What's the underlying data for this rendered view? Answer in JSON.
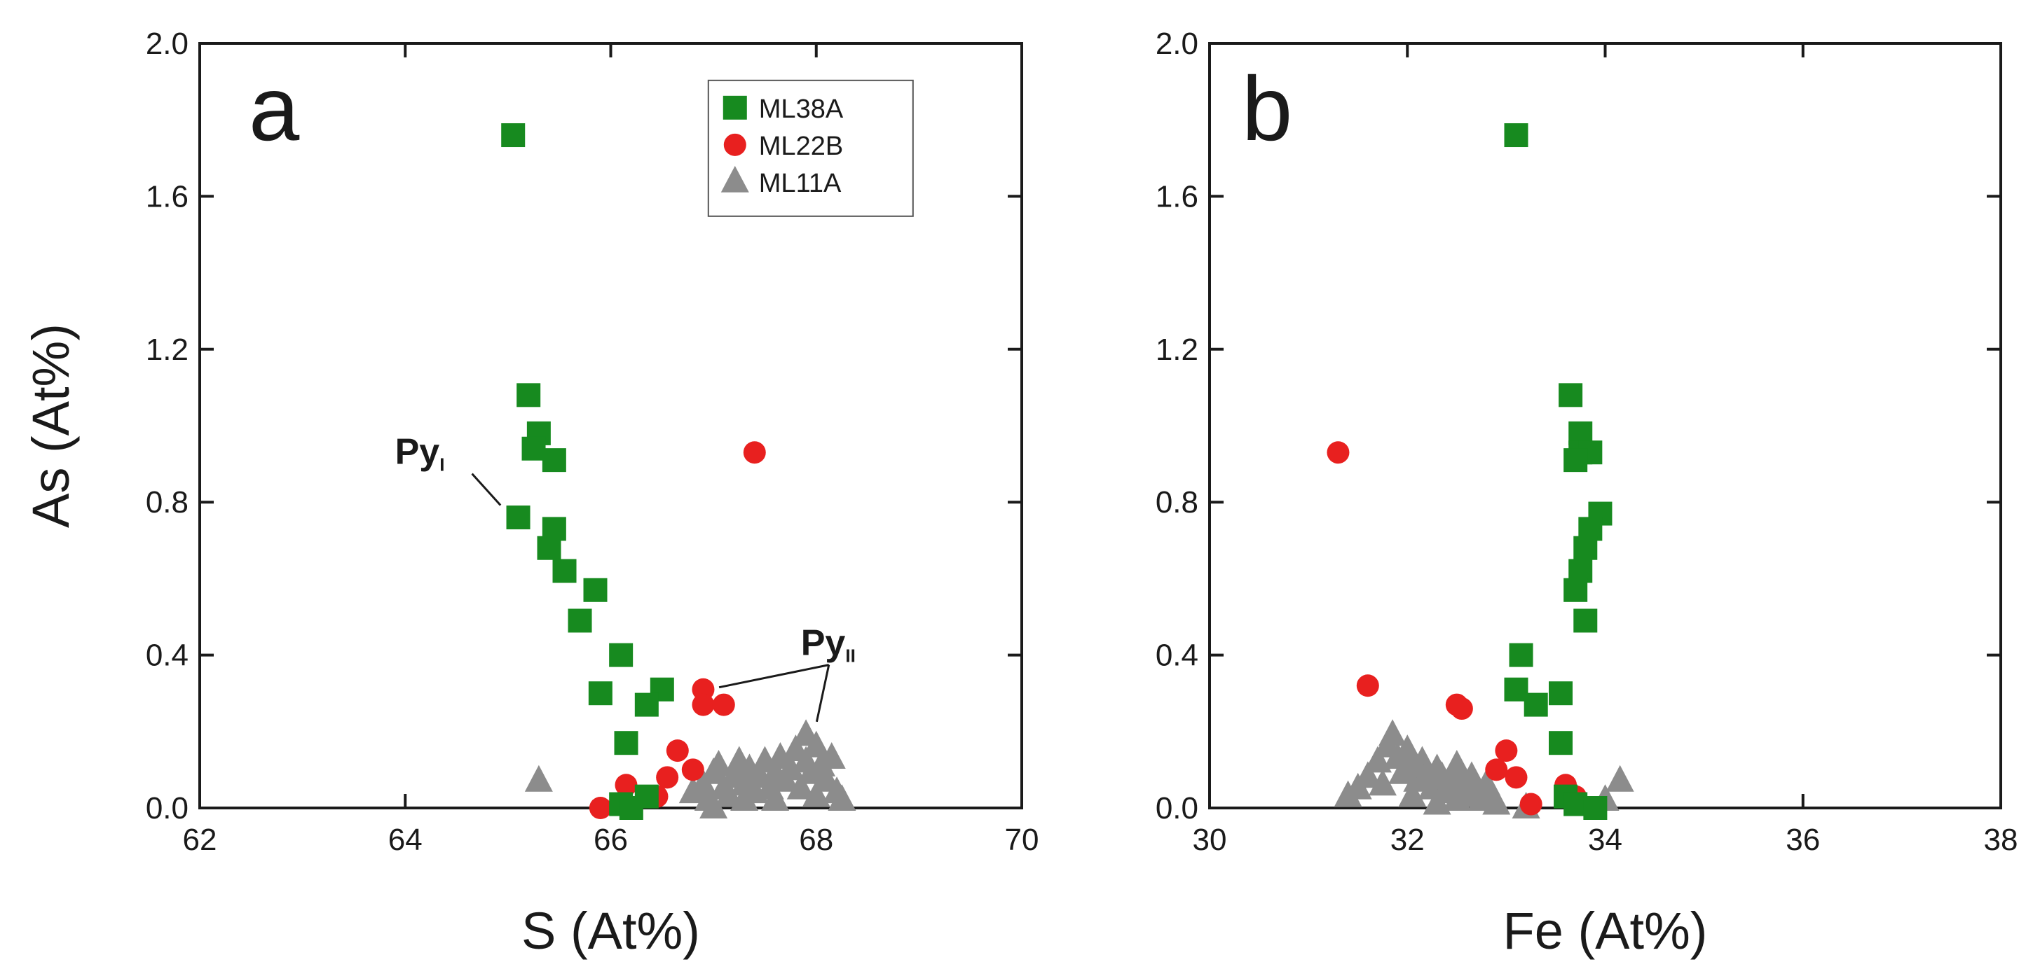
{
  "chart_data": [
    {
      "type": "scatter",
      "panel_label": "a",
      "xlabel": "S (At%)",
      "ylabel": "As (At%)",
      "xlim": [
        62,
        70
      ],
      "ylim": [
        0,
        2.0
      ],
      "xticks": [
        "62",
        "64",
        "66",
        "68",
        "70"
      ],
      "yticks": [
        "0.0",
        "0.4",
        "0.8",
        "1.2",
        "1.6",
        "2.0"
      ],
      "grid": false,
      "legend_position": "top-right",
      "series": [
        {
          "name": "ML38A",
          "marker": "square",
          "color": "#178a1f",
          "points": [
            [
              65.05,
              1.76
            ],
            [
              65.2,
              1.08
            ],
            [
              65.3,
              0.98
            ],
            [
              65.25,
              0.94
            ],
            [
              65.45,
              0.91
            ],
            [
              65.1,
              0.76
            ],
            [
              65.45,
              0.73
            ],
            [
              65.4,
              0.68
            ],
            [
              65.55,
              0.62
            ],
            [
              65.85,
              0.57
            ],
            [
              65.7,
              0.49
            ],
            [
              66.1,
              0.4
            ],
            [
              65.9,
              0.3
            ],
            [
              66.5,
              0.31
            ],
            [
              66.35,
              0.27
            ],
            [
              66.15,
              0.17
            ],
            [
              66.35,
              0.03
            ],
            [
              66.1,
              0.01
            ],
            [
              66.2,
              0.0
            ]
          ]
        },
        {
          "name": "ML22B",
          "marker": "circle",
          "color": "#e8201f",
          "points": [
            [
              67.4,
              0.93
            ],
            [
              66.9,
              0.31
            ],
            [
              66.9,
              0.27
            ],
            [
              67.1,
              0.27
            ],
            [
              66.65,
              0.15
            ],
            [
              66.8,
              0.1
            ],
            [
              66.55,
              0.08
            ],
            [
              66.15,
              0.06
            ],
            [
              66.45,
              0.03
            ],
            [
              65.9,
              0.0
            ]
          ]
        },
        {
          "name": "ML11A",
          "marker": "triangle",
          "color": "#8c8c8c",
          "points": [
            [
              65.3,
              0.07
            ],
            [
              66.8,
              0.04
            ],
            [
              66.9,
              0.06
            ],
            [
              67.0,
              0.09
            ],
            [
              67.05,
              0.11
            ],
            [
              67.1,
              0.05
            ],
            [
              67.15,
              0.03
            ],
            [
              67.2,
              0.08
            ],
            [
              67.25,
              0.12
            ],
            [
              67.3,
              0.06
            ],
            [
              67.3,
              0.02
            ],
            [
              67.35,
              0.1
            ],
            [
              67.4,
              0.04
            ],
            [
              67.45,
              0.08
            ],
            [
              67.5,
              0.12
            ],
            [
              67.55,
              0.05
            ],
            [
              67.6,
              0.09
            ],
            [
              67.6,
              0.02
            ],
            [
              67.65,
              0.13
            ],
            [
              67.7,
              0.07
            ],
            [
              67.75,
              0.1
            ],
            [
              67.8,
              0.15
            ],
            [
              67.85,
              0.05
            ],
            [
              67.9,
              0.19
            ],
            [
              67.9,
              0.12
            ],
            [
              67.95,
              0.09
            ],
            [
              68.0,
              0.16
            ],
            [
              68.0,
              0.03
            ],
            [
              68.05,
              0.11
            ],
            [
              68.1,
              0.07
            ],
            [
              68.15,
              0.13
            ],
            [
              68.2,
              0.04
            ],
            [
              68.25,
              0.02
            ],
            [
              67.0,
              0.0
            ],
            [
              66.95,
              0.02
            ]
          ]
        }
      ],
      "annotations": [
        {
          "text": "Py",
          "subscript": "I",
          "x": 63.9,
          "y": 0.9,
          "pointer": [
            65.05,
            0.77
          ]
        },
        {
          "text": "Py",
          "subscript": "II",
          "x": 67.85,
          "y": 0.4,
          "pointer_to": [
            [
              67.0,
              0.29
            ],
            [
              67.95,
              0.2
            ]
          ]
        }
      ]
    },
    {
      "type": "scatter",
      "panel_label": "b",
      "xlabel": "Fe (At%)",
      "ylabel": "",
      "xlim": [
        30,
        38
      ],
      "ylim": [
        0,
        2.0
      ],
      "xticks": [
        "30",
        "32",
        "34",
        "36",
        "38"
      ],
      "yticks": [
        "0.0",
        "0.4",
        "0.8",
        "1.2",
        "1.6",
        "2.0"
      ],
      "grid": false,
      "series": [
        {
          "name": "ML38A",
          "marker": "square",
          "color": "#178a1f",
          "points": [
            [
              33.1,
              1.76
            ],
            [
              33.65,
              1.08
            ],
            [
              33.75,
              0.98
            ],
            [
              33.75,
              0.93
            ],
            [
              33.85,
              0.93
            ],
            [
              33.7,
              0.91
            ],
            [
              33.95,
              0.77
            ],
            [
              33.85,
              0.73
            ],
            [
              33.8,
              0.68
            ],
            [
              33.75,
              0.62
            ],
            [
              33.7,
              0.57
            ],
            [
              33.8,
              0.49
            ],
            [
              33.15,
              0.4
            ],
            [
              33.1,
              0.31
            ],
            [
              33.55,
              0.3
            ],
            [
              33.3,
              0.27
            ],
            [
              33.55,
              0.17
            ],
            [
              33.6,
              0.03
            ],
            [
              33.7,
              0.01
            ],
            [
              33.9,
              0.0
            ]
          ]
        },
        {
          "name": "ML22B",
          "marker": "circle",
          "color": "#e8201f",
          "points": [
            [
              31.3,
              0.93
            ],
            [
              31.6,
              0.32
            ],
            [
              32.5,
              0.27
            ],
            [
              32.55,
              0.26
            ],
            [
              33.0,
              0.15
            ],
            [
              32.9,
              0.1
            ],
            [
              33.1,
              0.08
            ],
            [
              33.6,
              0.06
            ],
            [
              33.7,
              0.03
            ],
            [
              33.25,
              0.01
            ]
          ]
        },
        {
          "name": "ML11A",
          "marker": "triangle",
          "color": "#8c8c8c",
          "points": [
            [
              31.4,
              0.03
            ],
            [
              31.6,
              0.08
            ],
            [
              31.7,
              0.12
            ],
            [
              31.75,
              0.06
            ],
            [
              31.8,
              0.16
            ],
            [
              31.85,
              0.19
            ],
            [
              31.9,
              0.13
            ],
            [
              31.95,
              0.09
            ],
            [
              32.0,
              0.15
            ],
            [
              32.05,
              0.11
            ],
            [
              32.1,
              0.07
            ],
            [
              32.15,
              0.12
            ],
            [
              32.2,
              0.09
            ],
            [
              32.25,
              0.05
            ],
            [
              32.3,
              0.1
            ],
            [
              32.35,
              0.08
            ],
            [
              32.4,
              0.04
            ],
            [
              32.45,
              0.07
            ],
            [
              32.5,
              0.11
            ],
            [
              32.55,
              0.06
            ],
            [
              32.6,
              0.03
            ],
            [
              32.65,
              0.08
            ],
            [
              32.7,
              0.05
            ],
            [
              32.75,
              0.02
            ],
            [
              32.8,
              0.06
            ],
            [
              32.85,
              0.03
            ],
            [
              32.9,
              0.01
            ],
            [
              32.5,
              0.02
            ],
            [
              32.3,
              0.01
            ],
            [
              32.05,
              0.03
            ],
            [
              31.5,
              0.05
            ],
            [
              33.2,
              0.0
            ],
            [
              34.15,
              0.07
            ],
            [
              34.0,
              0.02
            ]
          ]
        }
      ]
    }
  ]
}
